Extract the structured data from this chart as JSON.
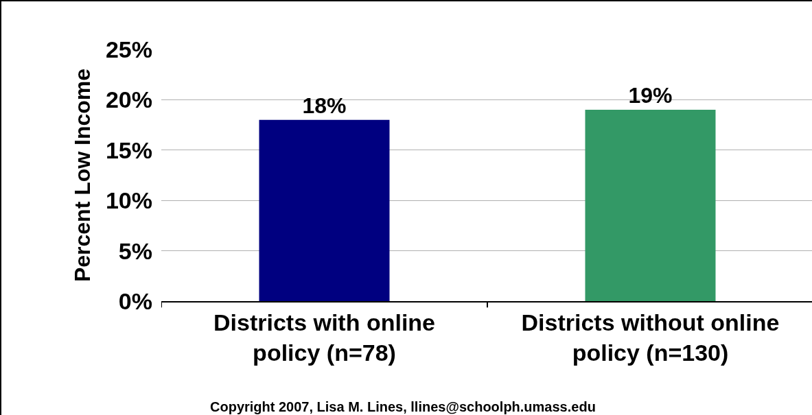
{
  "chart_data": {
    "type": "bar",
    "ylabel": "Percent Low Income",
    "categories": [
      "Districts with online policy (n=78)",
      "Districts without online policy (n=130)"
    ],
    "values": [
      18,
      19
    ],
    "colors": [
      "#000080",
      "#339966"
    ],
    "value_labels": [
      "18%",
      "19%"
    ],
    "ylim": [
      0,
      25
    ],
    "yticks": [
      {
        "value": 0,
        "label": "0%"
      },
      {
        "value": 5,
        "label": "5%"
      },
      {
        "value": 10,
        "label": "10%"
      },
      {
        "value": 15,
        "label": "15%"
      },
      {
        "value": 20,
        "label": "20%"
      },
      {
        "value": 25,
        "label": "25%"
      }
    ],
    "grid": "y",
    "annotations": [
      "Copyright 2007, Lisa M. Lines, llines@schoolph.umass.edu"
    ]
  }
}
